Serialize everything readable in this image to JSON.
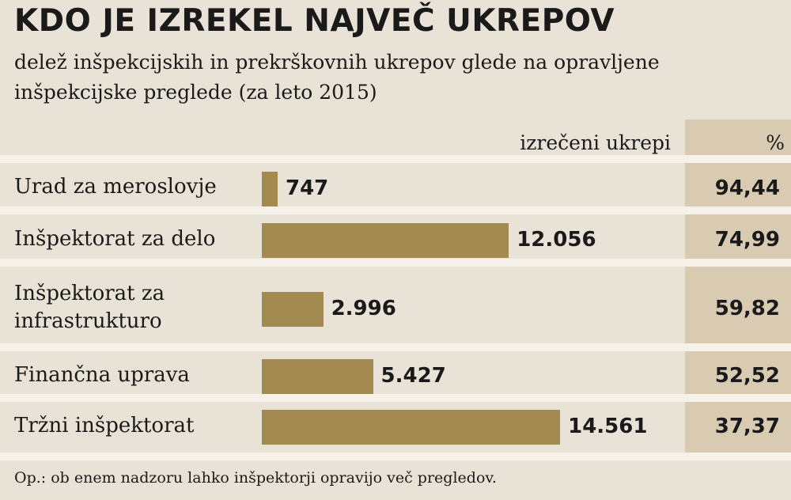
{
  "chart_data": {
    "type": "bar",
    "title": "KDO JE IZREKEL NAJVEČ UKREPOV",
    "subtitle": "delež inšpekcijskih in prekrškovnih ukrepov glede na opravljene inšpekcijske preglede (za leto 2015)",
    "columns": {
      "measures": "izrečeni ukrepi",
      "percent": "%"
    },
    "categories": [
      "Urad za meroslovje",
      "Inšpektorat za delo",
      "Inšpektorat za infrastrukturo",
      "Finančna uprava",
      "Tržni inšpektorat"
    ],
    "values": [
      747,
      12056,
      2996,
      5427,
      14561
    ],
    "value_labels": [
      "747",
      "12.056",
      "2.996",
      "5.427",
      "14.561"
    ],
    "percent_labels": [
      "94,44",
      "74,99",
      "59,82",
      "52,52",
      "37,37"
    ],
    "percent_values": [
      94.44,
      74.99,
      59.82,
      52.52,
      37.37
    ],
    "xlim": [
      0,
      16000
    ],
    "colors": {
      "bar": "#a28a50",
      "percent_column": "#d8cbb2",
      "background": "#e9e2d6"
    },
    "footnote": "Op.: ob enem nadzoru lahko inšpektorji opravijo več pregledov."
  }
}
